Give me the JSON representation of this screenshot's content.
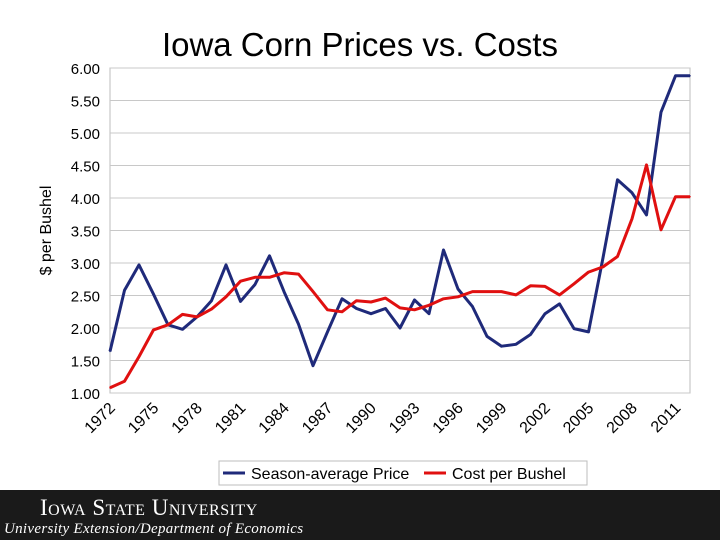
{
  "chart_data": {
    "type": "line",
    "title": "Iowa Corn Prices vs. Costs",
    "xlabel": "",
    "ylabel": "$ per Bushel",
    "ylim": [
      1.0,
      6.0
    ],
    "yticks": [
      "1.00",
      "1.50",
      "2.00",
      "2.50",
      "3.00",
      "3.50",
      "4.00",
      "4.50",
      "5.00",
      "5.50",
      "6.00"
    ],
    "xlim": [
      1972,
      2012
    ],
    "xticks": [
      "1972",
      "1975",
      "1978",
      "1981",
      "1984",
      "1987",
      "1990",
      "1993",
      "1996",
      "1999",
      "2002",
      "2005",
      "2008",
      "2011"
    ],
    "grid": true,
    "legend": "bottom",
    "series": [
      {
        "name": "Season-average Price",
        "color": "#1f2a7a",
        "x": [
          1972,
          1973,
          1974,
          1975,
          1976,
          1977,
          1978,
          1979,
          1980,
          1981,
          1982,
          1983,
          1984,
          1985,
          1986,
          1987,
          1988,
          1989,
          1990,
          1991,
          1992,
          1993,
          1994,
          1995,
          1996,
          1997,
          1998,
          1999,
          2000,
          2001,
          2002,
          2003,
          2004,
          2005,
          2006,
          2007,
          2008,
          2009,
          2010,
          2011,
          2012
        ],
        "y": [
          1.64,
          2.58,
          2.97,
          2.52,
          2.05,
          1.98,
          2.17,
          2.42,
          2.97,
          2.41,
          2.67,
          3.11,
          2.56,
          2.06,
          1.42,
          1.94,
          2.45,
          2.3,
          2.22,
          2.3,
          2.0,
          2.43,
          2.22,
          3.2,
          2.6,
          2.33,
          1.87,
          1.72,
          1.75,
          1.9,
          2.22,
          2.37,
          1.99,
          1.94,
          3.08,
          4.28,
          4.08,
          3.74,
          5.32,
          5.88,
          5.88
        ]
      },
      {
        "name": "Cost per Bushel",
        "color": "#e01010",
        "x": [
          1972,
          1973,
          1974,
          1975,
          1976,
          1977,
          1978,
          1979,
          1980,
          1981,
          1982,
          1983,
          1984,
          1985,
          1986,
          1987,
          1988,
          1989,
          1990,
          1991,
          1992,
          1993,
          1994,
          1995,
          1996,
          1997,
          1998,
          1999,
          2000,
          2001,
          2002,
          2003,
          2004,
          2005,
          2006,
          2007,
          2008,
          2009,
          2010,
          2011,
          2012
        ],
        "y": [
          1.08,
          1.18,
          1.56,
          1.97,
          2.05,
          2.21,
          2.17,
          2.29,
          2.48,
          2.72,
          2.78,
          2.78,
          2.85,
          2.83,
          2.56,
          2.28,
          2.25,
          2.42,
          2.4,
          2.46,
          2.31,
          2.28,
          2.35,
          2.45,
          2.48,
          2.56,
          2.56,
          2.56,
          2.51,
          2.65,
          2.64,
          2.51,
          2.68,
          2.86,
          2.94,
          3.1,
          3.68,
          4.51,
          3.51,
          4.02,
          4.02
        ]
      }
    ]
  },
  "footer": {
    "university": "Iowa State University",
    "department": "University Extension/Department of Economics"
  }
}
